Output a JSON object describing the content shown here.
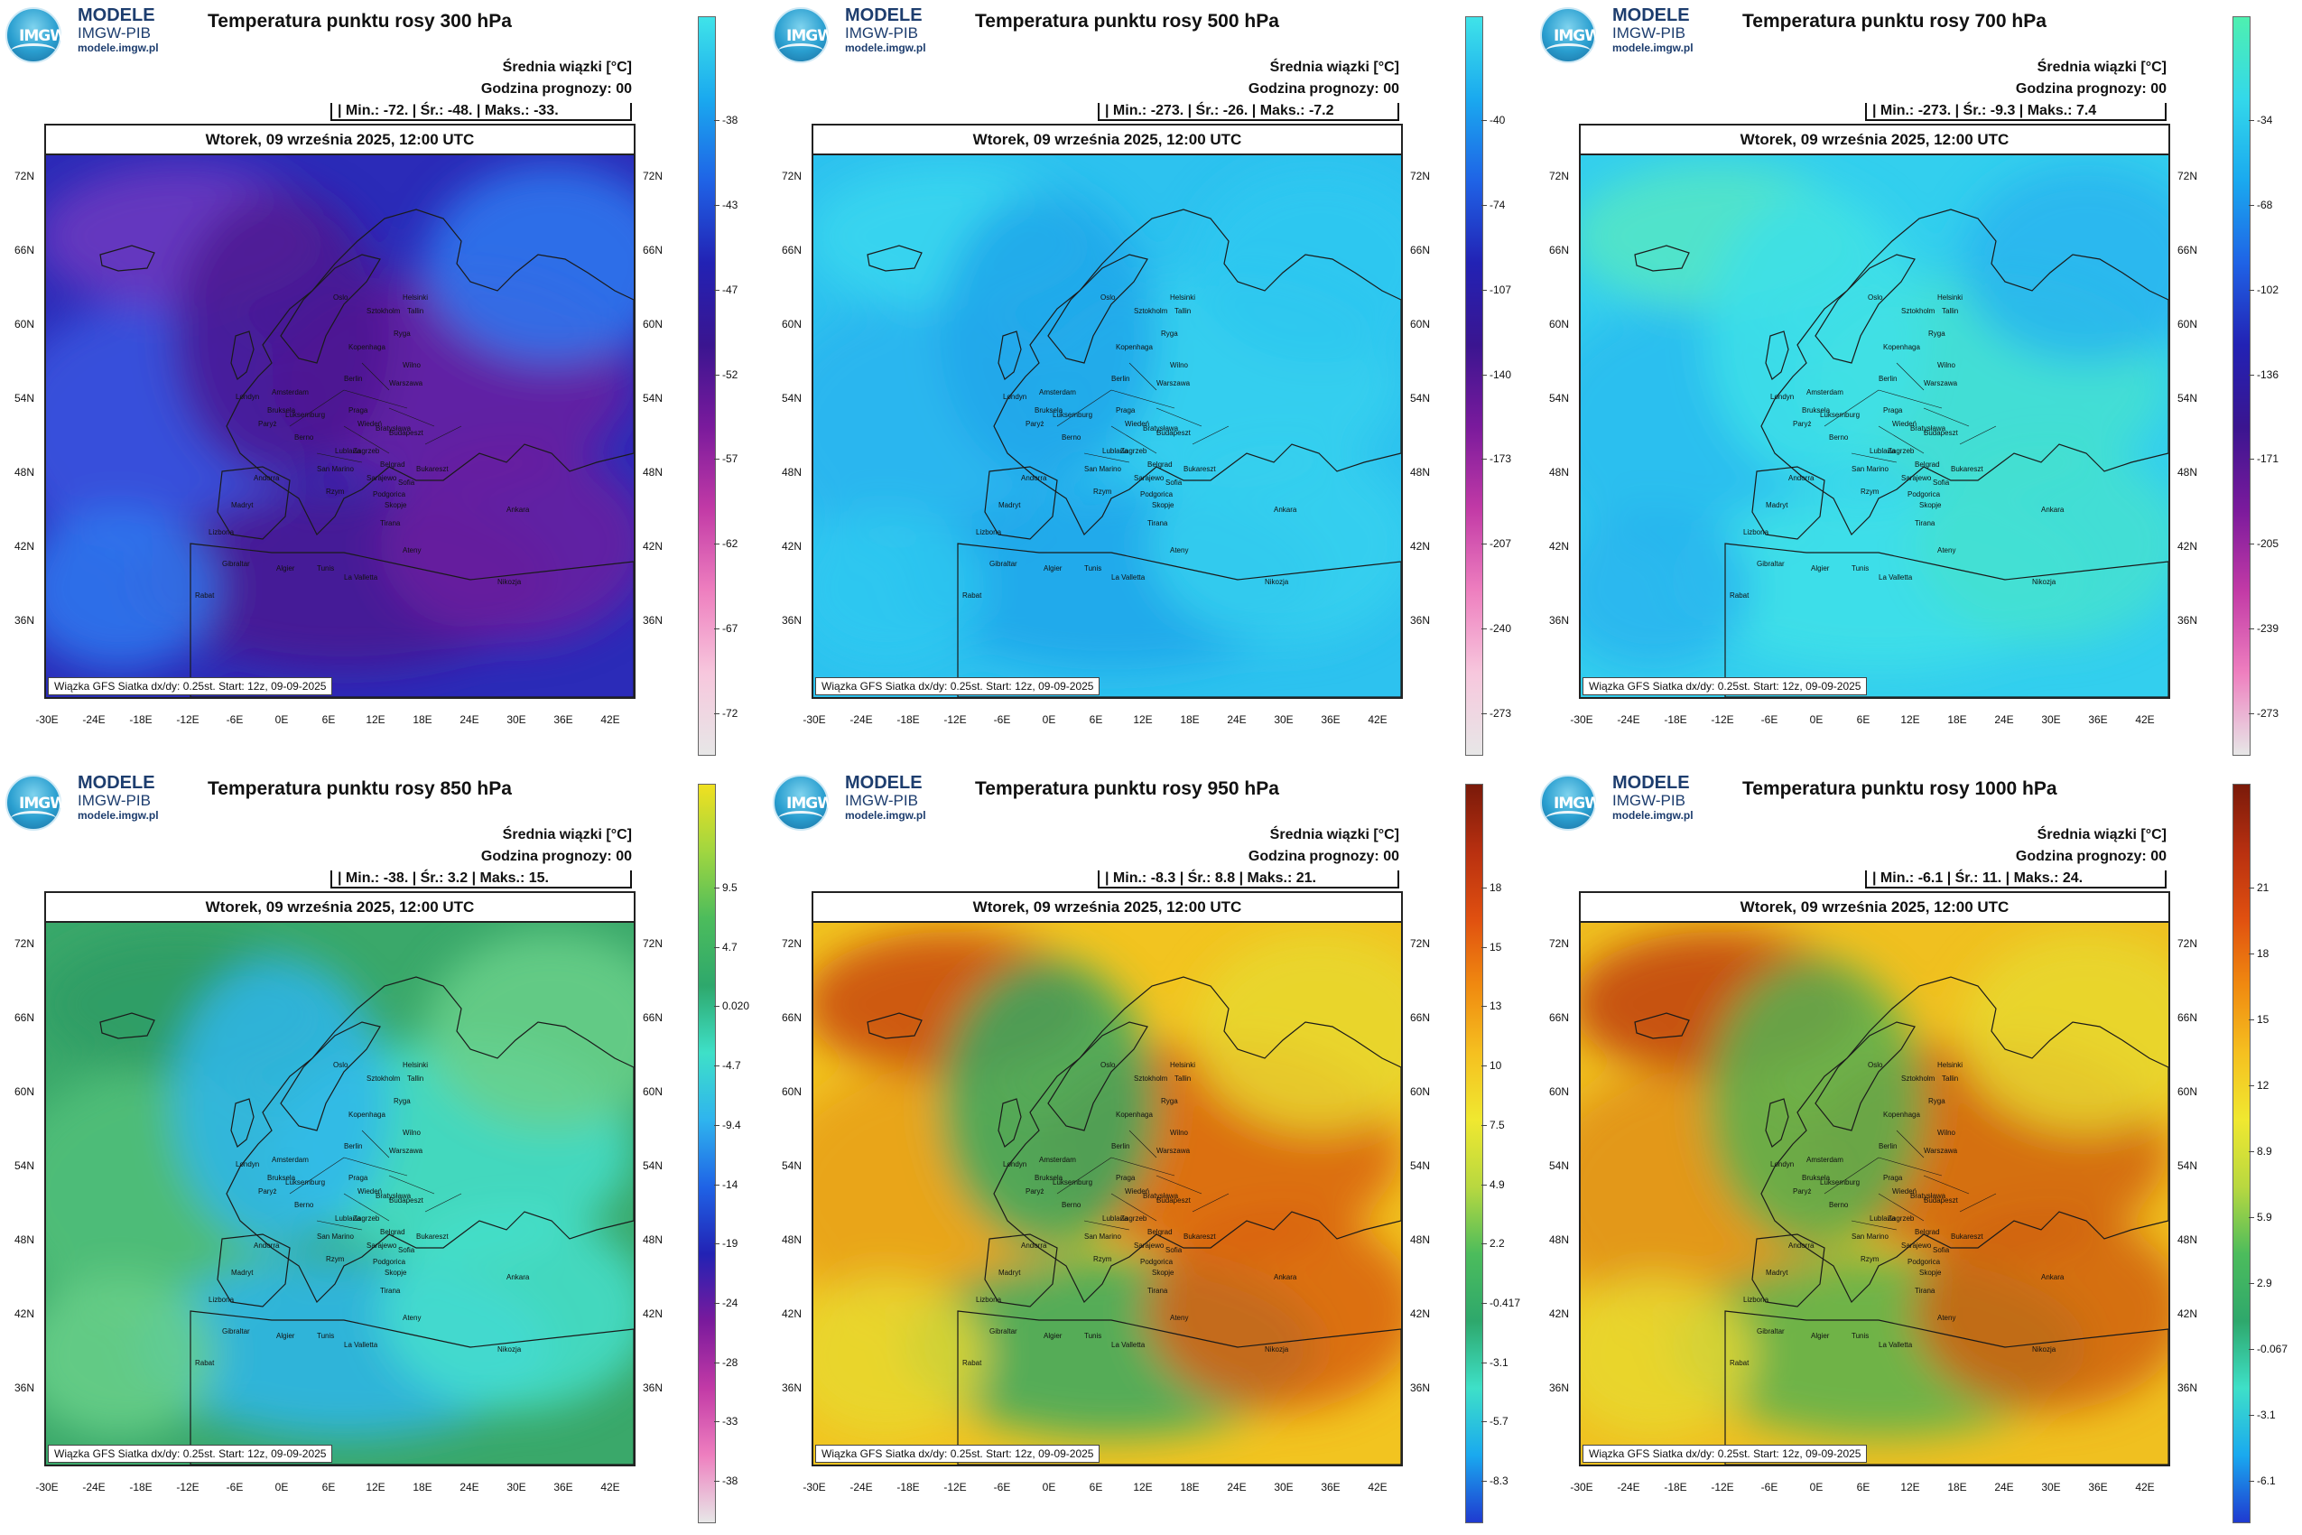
{
  "brand": {
    "line1": "MODELE",
    "line2": "IMGW-PIB",
    "line3": "modele.imgw.pl",
    "logo": "IMGW"
  },
  "header": {
    "mean_label": "Średnia wiązki [°C]",
    "forecast_hour": "Godzina prognozy: 00"
  },
  "date": "Wtorek, 09 września 2025, 12:00 UTC",
  "footer": "Wiązka GFS Siatka dx/dy: 0.25st. Start: 12z, 09-09-2025",
  "lat_labels": [
    "72N",
    "66N",
    "60N",
    "54N",
    "48N",
    "42N",
    "36N"
  ],
  "lon_labels": [
    "-30E",
    "-24E",
    "-18E",
    "-12E",
    "-6E",
    "0E",
    "6E",
    "12E",
    "18E",
    "24E",
    "30E",
    "36E",
    "42E"
  ],
  "cities": [
    "Oslo",
    "Helsinki",
    "Sztokholm",
    "Tallin",
    "Ryga",
    "Kopenhaga",
    "Wilno",
    "Amsterdam",
    "Londyn",
    "Berlin",
    "Warszawa",
    "Bruksela",
    "Luksemburg",
    "Praga",
    "Paryż",
    "Berno",
    "Wiedeń",
    "Zagrzeb",
    "Bratysława",
    "Budapeszt",
    "Lublana",
    "Belgrad",
    "Sarajewo",
    "San Marino",
    "Podgorica",
    "Bukareszt",
    "Sofia",
    "Skopje",
    "Tirana",
    "Rzym",
    "Andorra",
    "Madryt",
    "Lizbona",
    "Ankara",
    "Ateny",
    "Gibraltar",
    "Algier",
    "Tunis",
    "La Valletta",
    "Rabat",
    "Nikozja"
  ],
  "chart_data": [
    {
      "type": "heatmap",
      "title": "Temperatura punktu rosy 300 hPa",
      "variable": "dew point temperature",
      "level": "300 hPa",
      "unit": "°C",
      "stats": {
        "min": "-72.",
        "mean": "-48.",
        "max": "-33."
      },
      "x_ticks": [
        "-30E",
        "-24E",
        "-18E",
        "-12E",
        "-6E",
        "0E",
        "6E",
        "12E",
        "18E",
        "24E",
        "30E",
        "36E",
        "42E"
      ],
      "y_ticks": [
        "72N",
        "66N",
        "60N",
        "54N",
        "48N",
        "42N",
        "36N"
      ],
      "colorbar": {
        "ticks": [
          "-38",
          "-43",
          "-47",
          "-52",
          "-57",
          "-62",
          "-67",
          "-72"
        ],
        "colors": [
          "#3fe3e9",
          "#1aa9ef",
          "#1f63e6",
          "#2222b4",
          "#3a1590",
          "#7a1a9c",
          "#c23aa6",
          "#ee7fbf",
          "#f7c7dd",
          "#e7e7e7"
        ]
      },
      "field_colors": [
        "#2b2bb8",
        "#3b55e0",
        "#6a1fa0",
        "#4b1590",
        "#2f7af0",
        "#6f3ac0"
      ]
    },
    {
      "type": "heatmap",
      "title": "Temperatura punktu rosy 500 hPa",
      "variable": "dew point temperature",
      "level": "500 hPa",
      "unit": "°C",
      "stats": {
        "min": "-273.",
        "mean": "-26.",
        "max": "-7.2"
      },
      "x_ticks": [
        "-30E",
        "-24E",
        "-18E",
        "-12E",
        "-6E",
        "0E",
        "6E",
        "12E",
        "18E",
        "24E",
        "30E",
        "36E",
        "42E"
      ],
      "y_ticks": [
        "72N",
        "66N",
        "60N",
        "54N",
        "48N",
        "42N",
        "36N"
      ],
      "colorbar": {
        "ticks": [
          "-40",
          "-74",
          "-107",
          "-140",
          "-173",
          "-207",
          "-240",
          "-273"
        ],
        "colors": [
          "#3fe3e9",
          "#1aa9ef",
          "#1f63e6",
          "#2222b4",
          "#3a1590",
          "#7a1a9c",
          "#c23aa6",
          "#ee7fbf",
          "#f7c7dd",
          "#e7e7e7"
        ]
      },
      "field_colors": [
        "#2dc2ef",
        "#29b4ee",
        "#35d0ee",
        "#1fa6ea",
        "#2fc8f0",
        "#3bd6ee"
      ]
    },
    {
      "type": "heatmap",
      "title": "Temperatura punktu rosy 700 hPa",
      "variable": "dew point temperature",
      "level": "700 hPa",
      "unit": "°C",
      "stats": {
        "min": "-273.",
        "mean": "-9.3",
        "max": "7.4"
      },
      "x_ticks": [
        "-30E",
        "-24E",
        "-18E",
        "-12E",
        "-6E",
        "0E",
        "6E",
        "12E",
        "18E",
        "24E",
        "30E",
        "36E",
        "42E"
      ],
      "y_ticks": [
        "72N",
        "66N",
        "60N",
        "54N",
        "48N",
        "42N",
        "36N"
      ],
      "colorbar": {
        "ticks": [
          "-34",
          "-68",
          "-102",
          "-136",
          "-171",
          "-205",
          "-239",
          "-273"
        ],
        "colors": [
          "#4ef0b0",
          "#33d8ea",
          "#1aa9ef",
          "#1f63e6",
          "#2222b4",
          "#3a1590",
          "#7a1a9c",
          "#c23aa6",
          "#ee7fbf",
          "#e7e7e7"
        ]
      },
      "field_colors": [
        "#33cfee",
        "#2bbcee",
        "#44e0d0",
        "#3fe0e8",
        "#29b4ee",
        "#55e6c4"
      ]
    },
    {
      "type": "heatmap",
      "title": "Temperatura punktu rosy 850 hPa",
      "variable": "dew point temperature",
      "level": "850 hPa",
      "unit": "°C",
      "stats": {
        "min": "-38.",
        "mean": "3.2",
        "max": "15."
      },
      "x_ticks": [
        "-30E",
        "-24E",
        "-18E",
        "-12E",
        "-6E",
        "0E",
        "6E",
        "12E",
        "18E",
        "24E",
        "30E",
        "36E",
        "42E"
      ],
      "y_ticks": [
        "72N",
        "66N",
        "60N",
        "54N",
        "48N",
        "42N",
        "36N"
      ],
      "colorbar": {
        "ticks": [
          "9.5",
          "4.7",
          "0.020",
          "-4.7",
          "-9.4",
          "-14",
          "-19",
          "-24",
          "-28",
          "-33",
          "-38"
        ],
        "colors": [
          "#f0e020",
          "#a0d640",
          "#4cbc5c",
          "#2ea86c",
          "#3ee0c8",
          "#2fb4ee",
          "#1f63e6",
          "#2222b4",
          "#7a1a9c",
          "#c23aa6",
          "#ee7fbf",
          "#e7e7e7"
        ]
      },
      "field_colors": [
        "#3aa86a",
        "#52c07a",
        "#46e0cc",
        "#2fb6ec",
        "#6ad08a",
        "#2f9c64"
      ]
    },
    {
      "type": "heatmap",
      "title": "Temperatura punktu rosy 950 hPa",
      "variable": "dew point temperature",
      "level": "950 hPa",
      "unit": "°C",
      "stats": {
        "min": "-8.3",
        "mean": "8.8",
        "max": "21."
      },
      "x_ticks": [
        "-30E",
        "-24E",
        "-18E",
        "-12E",
        "-6E",
        "0E",
        "6E",
        "12E",
        "18E",
        "24E",
        "30E",
        "36E",
        "42E"
      ],
      "y_ticks": [
        "72N",
        "66N",
        "60N",
        "54N",
        "48N",
        "42N",
        "36N"
      ],
      "colorbar": {
        "ticks": [
          "18",
          "15",
          "13",
          "10",
          "7.5",
          "4.9",
          "2.2",
          "-0.417",
          "-3.1",
          "-5.7",
          "-8.3"
        ],
        "colors": [
          "#7a1a0a",
          "#b83010",
          "#e05010",
          "#f08a10",
          "#f5c020",
          "#f0e830",
          "#b8d840",
          "#4cbc5c",
          "#2ea86c",
          "#3ee0c8",
          "#1aa9ef",
          "#1f3ad0"
        ]
      },
      "field_colors": [
        "#f2c420",
        "#e8a018",
        "#d86010",
        "#3aa860",
        "#e8d830",
        "#c84812"
      ]
    },
    {
      "type": "heatmap",
      "title": "Temperatura punktu rosy 1000 hPa",
      "variable": "dew point temperature",
      "level": "1000 hPa",
      "unit": "°C",
      "stats": {
        "min": "-6.1",
        "mean": "11.",
        "max": "24."
      },
      "x_ticks": [
        "-30E",
        "-24E",
        "-18E",
        "-12E",
        "-6E",
        "0E",
        "6E",
        "12E",
        "18E",
        "24E",
        "30E",
        "36E",
        "42E"
      ],
      "y_ticks": [
        "72N",
        "66N",
        "60N",
        "54N",
        "48N",
        "42N",
        "36N"
      ],
      "colorbar": {
        "ticks": [
          "21",
          "18",
          "15",
          "12",
          "8.9",
          "5.9",
          "2.9",
          "-0.067",
          "-3.1",
          "-6.1"
        ],
        "colors": [
          "#7a1a0a",
          "#b83010",
          "#e05010",
          "#f08a10",
          "#f5c020",
          "#f0e830",
          "#b8d840",
          "#4cbc5c",
          "#2ea86c",
          "#3ee0c8",
          "#1aa9ef",
          "#1f3ad0"
        ]
      },
      "field_colors": [
        "#f0c020",
        "#e09018",
        "#d06010",
        "#58b050",
        "#e8d830",
        "#c04010"
      ]
    }
  ]
}
